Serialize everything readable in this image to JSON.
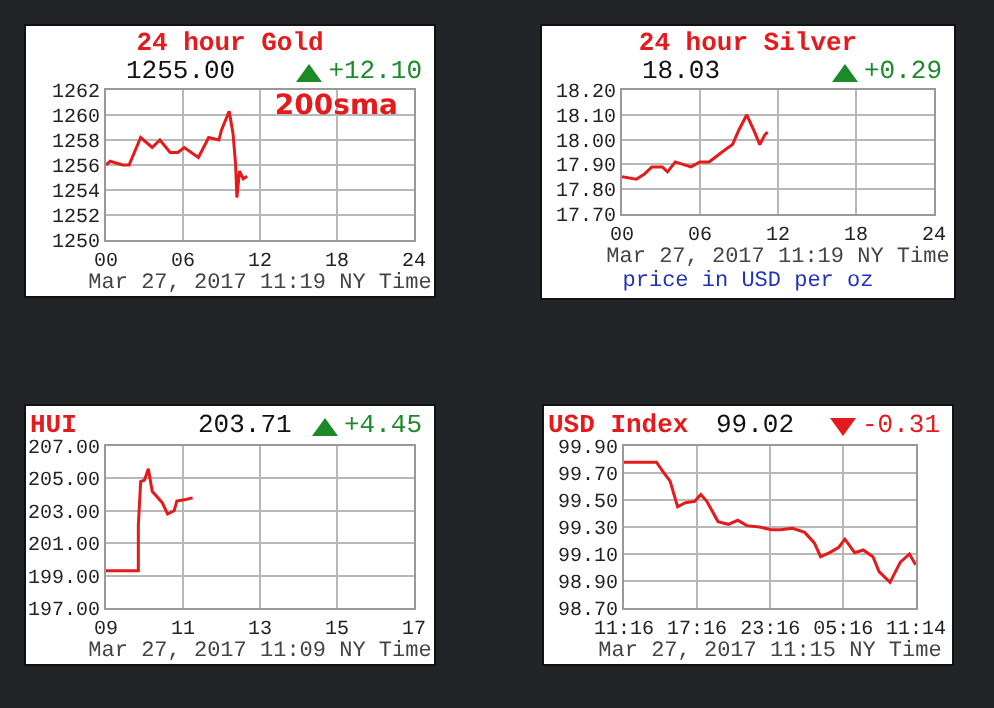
{
  "chart_data": [
    {
      "type": "line",
      "title": "24 hour Gold",
      "subtitle": "1255.00",
      "xlabel": "Mar 27, 2017 11:19 NY Time",
      "annotations": [
        "+12.10",
        "200sma"
      ],
      "color": "#e41a1c",
      "grid": true,
      "x": [
        0,
        0.33,
        1.3,
        1.8,
        2.7,
        3.6,
        4.2,
        5.0,
        5.6,
        6.1,
        7.2,
        8.0,
        8.8,
        9.0,
        9.6,
        9.9,
        10.1,
        10.2,
        10.4,
        10.7,
        11.0
      ],
      "values": [
        1256.0,
        1256.3,
        1256.0,
        1256.0,
        1258.2,
        1257.4,
        1258.0,
        1257.0,
        1257.0,
        1257.4,
        1256.6,
        1258.2,
        1258.0,
        1258.8,
        1260.3,
        1258.5,
        1256.0,
        1253.4,
        1255.5,
        1254.9,
        1255.1
      ],
      "xlim": [
        0,
        24
      ],
      "ylim": [
        1250,
        1262
      ],
      "xticks": [
        {
          "value": 0,
          "label": "00"
        },
        {
          "value": 6,
          "label": "06"
        },
        12,
        18,
        24
      ],
      "yticks": [
        1250,
        1252,
        1254,
        1256,
        1258,
        1260,
        1262
      ]
    },
    {
      "type": "line",
      "title": "24 hour Silver",
      "subtitle": "18.03",
      "xlabel": "Mar 27, 2017 11:19 NY Time",
      "annotations": [
        "+0.29",
        "price in USD per oz"
      ],
      "color": "#e41a1c",
      "grid": true,
      "x": [
        0,
        1.1,
        1.7,
        2.3,
        3.1,
        3.5,
        4.1,
        5.3,
        6.0,
        6.7,
        7.2,
        7.7,
        8.5,
        9.0,
        9.6,
        10.2,
        10.6,
        11.0,
        11.2
      ],
      "values": [
        17.85,
        17.84,
        17.86,
        17.89,
        17.89,
        17.87,
        17.91,
        17.89,
        17.91,
        17.91,
        17.93,
        17.95,
        17.98,
        18.04,
        18.1,
        18.03,
        17.98,
        18.02,
        18.03
      ],
      "xlim": [
        0,
        24
      ],
      "ylim": [
        17.7,
        18.2
      ],
      "xticks": [
        {
          "value": 0,
          "label": "00"
        },
        {
          "value": 6,
          "label": "06"
        },
        12,
        18,
        24
      ],
      "yticks": [
        {
          "value": 17.7,
          "label": "17.70"
        },
        {
          "value": 17.8,
          "label": "17.80"
        },
        {
          "value": 17.9,
          "label": "17.90"
        },
        {
          "value": 18.0,
          "label": "18.00"
        },
        {
          "value": 18.1,
          "label": "18.10"
        },
        {
          "value": 18.2,
          "label": "18.20"
        }
      ]
    },
    {
      "type": "line",
      "title": "HUI",
      "subtitle": "203.71",
      "xlabel": "Mar 27, 2017 11:09 NY Time",
      "annotations": [
        "+4.45"
      ],
      "color": "#e41a1c",
      "grid": true,
      "x": [
        9.0,
        9.84,
        9.84,
        9.9,
        10.0,
        10.1,
        10.2,
        10.46,
        10.6,
        10.77,
        10.84,
        11.07,
        11.25
      ],
      "values": [
        199.3,
        199.3,
        202.1,
        204.8,
        204.9,
        205.6,
        204.2,
        203.5,
        202.8,
        203.0,
        203.6,
        203.7,
        203.8
      ],
      "xlim": [
        9,
        17
      ],
      "ylim": [
        197,
        207
      ],
      "xticks": [
        {
          "value": 9,
          "label": "09"
        },
        11,
        13,
        15,
        17
      ],
      "yticks": [
        {
          "value": 197,
          "label": "197.00"
        },
        {
          "value": 199,
          "label": "199.00"
        },
        {
          "value": 201,
          "label": "201.00"
        },
        {
          "value": 203,
          "label": "203.00"
        },
        {
          "value": 205,
          "label": "205.00"
        },
        {
          "value": 207,
          "label": "207.00"
        }
      ]
    },
    {
      "type": "line",
      "title": "USD Index",
      "subtitle": "99.02",
      "xlabel": "Mar 27, 2017 11:15 NY Time",
      "annotations": [
        "-0.31"
      ],
      "color": "#e41a1c",
      "grid": true,
      "x": [
        "2017-03-26T11:16",
        "2017-03-26T13:56",
        "2017-03-26T14:33",
        "2017-03-26T15:03",
        "2017-03-26T15:40",
        "2017-03-26T16:18",
        "2017-03-26T17:04",
        "2017-03-26T17:34",
        "2017-03-26T18:04",
        "2017-03-26T18:59",
        "2017-03-26T19:50",
        "2017-03-26T20:36",
        "2017-03-26T21:21",
        "2017-03-26T22:22",
        "2017-03-26T23:22",
        "2017-03-27T00:06",
        "2017-03-27T01:06",
        "2017-03-27T02:06",
        "2017-03-27T02:54",
        "2017-03-27T03:24",
        "2017-03-27T04:09",
        "2017-03-27T04:54",
        "2017-03-27T05:24",
        "2017-03-27T06:12",
        "2017-03-27T06:54",
        "2017-03-27T07:42",
        "2017-03-27T08:12",
        "2017-03-27T09:06",
        "2017-03-27T09:57",
        "2017-03-27T10:42",
        "2017-03-27T11:12"
      ],
      "values": [
        99.78,
        99.78,
        99.7,
        99.64,
        99.45,
        99.48,
        99.49,
        99.54,
        99.49,
        99.34,
        99.32,
        99.35,
        99.31,
        99.3,
        99.28,
        99.28,
        99.29,
        99.26,
        99.18,
        99.08,
        99.11,
        99.15,
        99.21,
        99.11,
        99.13,
        99.08,
        98.97,
        98.89,
        99.04,
        99.1,
        99.02
      ],
      "xlim": [
        "2017-03-26T11:16",
        "2017-03-27T11:14"
      ],
      "ylim": [
        98.7,
        99.9
      ],
      "xticks": [
        {
          "value": "2017-03-26T11:16",
          "label": "11:16"
        },
        {
          "value": "2017-03-26T17:16",
          "label": "17:16"
        },
        {
          "value": "2017-03-26T23:16",
          "label": "23:16"
        },
        {
          "value": "2017-03-27T05:16",
          "label": "05:16"
        },
        {
          "value": "2017-03-27T11:14",
          "label": "11:14"
        }
      ],
      "yticks": [
        {
          "value": 98.7,
          "label": "98.70"
        },
        {
          "value": 98.9,
          "label": "98.90"
        },
        {
          "value": 99.1,
          "label": "99.10"
        },
        {
          "value": 99.3,
          "label": "99.30"
        },
        {
          "value": 99.5,
          "label": "99.50"
        },
        {
          "value": 99.7,
          "label": "99.70"
        },
        {
          "value": 99.9,
          "label": "99.90"
        }
      ]
    }
  ]
}
